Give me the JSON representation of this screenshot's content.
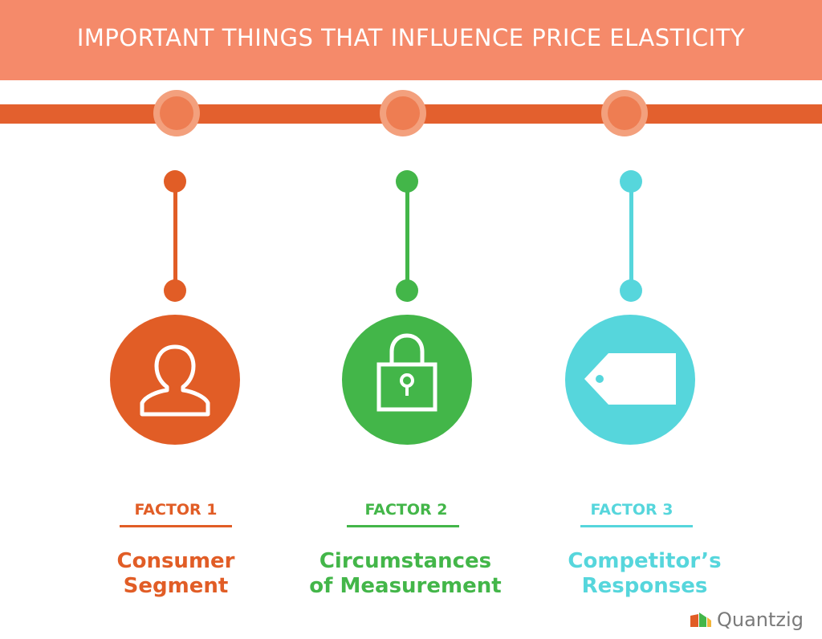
{
  "title": "IMPORTANT THINGS THAT INFLUENCE PRICE ELASTICITY",
  "colors": {
    "banner": "#f58a6a",
    "rail": "#e3602e",
    "factor1": "#e15d26",
    "factor2": "#43b649",
    "factor3": "#56d6dc"
  },
  "factors": [
    {
      "label": "FACTOR 1",
      "title_line1": "Consumer",
      "title_line2": "Segment",
      "icon": "person-icon"
    },
    {
      "label": "FACTOR 2",
      "title_line1": "Circumstances",
      "title_line2": "of Measurement",
      "icon": "padlock-icon"
    },
    {
      "label": "FACTOR 3",
      "title_line1": "Competitor’s",
      "title_line2": "Responses",
      "icon": "price-tag-icon"
    }
  ],
  "logo": {
    "text": "Quantzig"
  }
}
